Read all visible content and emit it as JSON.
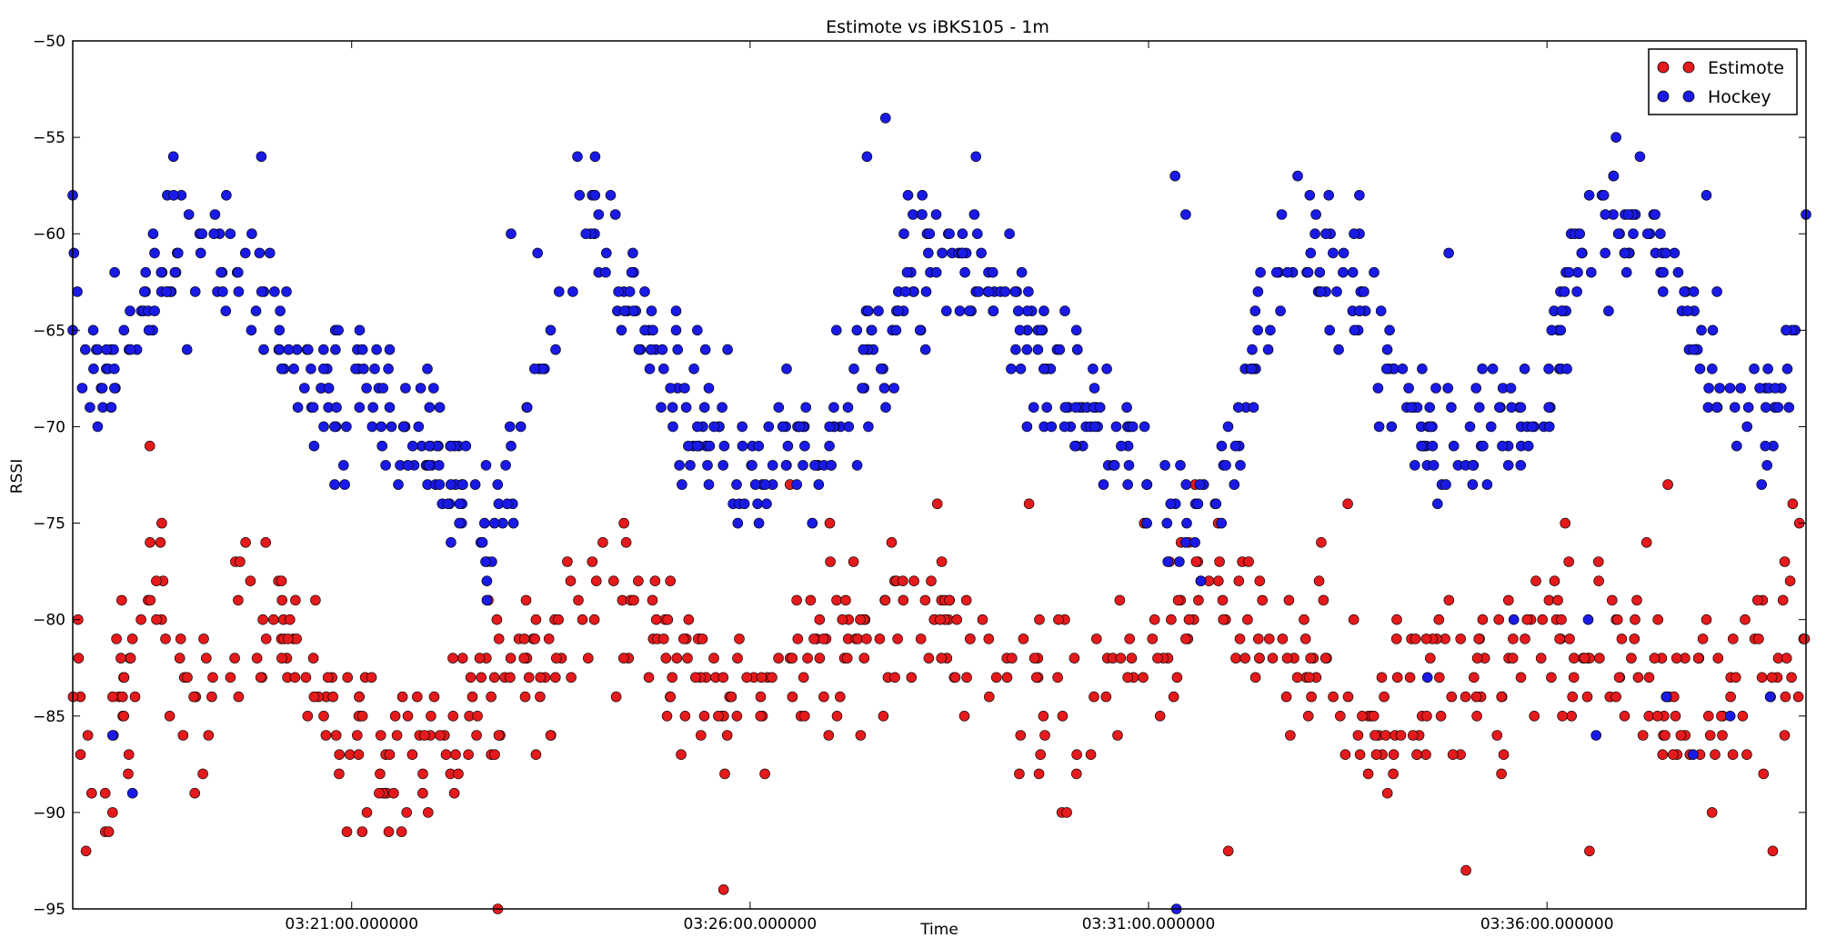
{
  "chart_data": {
    "type": "scatter",
    "title": "Estimote vs iBKS105 - 1m",
    "xlabel": "Time",
    "ylabel": "RSSI",
    "xlim_seconds_after_03_17_30": [
      0,
      1305
    ],
    "ylim": [
      -95,
      -50
    ],
    "yticks": [
      -50,
      -55,
      -60,
      -65,
      -70,
      -75,
      -80,
      -85,
      -90,
      -95
    ],
    "xticks": [
      {
        "value": 210,
        "label": "03:21:00.000000"
      },
      {
        "value": 510,
        "label": "03:26:00.000000"
      },
      {
        "value": 810,
        "label": "03:31:00.000000"
      },
      {
        "value": 1110,
        "label": "03:36:00.000000"
      }
    ],
    "grid": false,
    "legend": {
      "position": "top-right"
    },
    "series": [
      {
        "name": "Estimote",
        "color": "#e41a1c",
        "trend": [
          [
            0,
            -82
          ],
          [
            25,
            -88
          ],
          [
            60,
            -77
          ],
          [
            90,
            -84
          ],
          [
            130,
            -79
          ],
          [
            160,
            -81
          ],
          [
            200,
            -84
          ],
          [
            230,
            -88
          ],
          [
            270,
            -86
          ],
          [
            300,
            -85
          ],
          [
            330,
            -83
          ],
          [
            360,
            -82
          ],
          [
            390,
            -79
          ],
          [
            420,
            -79
          ],
          [
            450,
            -82
          ],
          [
            480,
            -84
          ],
          [
            510,
            -85
          ],
          [
            540,
            -84
          ],
          [
            570,
            -82
          ],
          [
            600,
            -81
          ],
          [
            630,
            -80
          ],
          [
            660,
            -80
          ],
          [
            690,
            -82
          ],
          [
            720,
            -84
          ],
          [
            750,
            -85
          ],
          [
            780,
            -84
          ],
          [
            810,
            -80
          ],
          [
            840,
            -79
          ],
          [
            870,
            -80
          ],
          [
            900,
            -81
          ],
          [
            930,
            -83
          ],
          [
            960,
            -84
          ],
          [
            990,
            -85
          ],
          [
            1020,
            -84
          ],
          [
            1050,
            -83
          ],
          [
            1080,
            -82
          ],
          [
            1110,
            -81
          ],
          [
            1140,
            -80
          ],
          [
            1170,
            -82
          ],
          [
            1200,
            -84
          ],
          [
            1230,
            -85
          ],
          [
            1260,
            -83
          ],
          [
            1305,
            -82
          ]
        ],
        "spread": 4.2,
        "count": 620,
        "highlights": [
          [
            4,
            -80
          ],
          [
            10,
            -92
          ],
          [
            30,
            -90
          ],
          [
            58,
            -71
          ],
          [
            320,
            -95
          ],
          [
            415,
            -75
          ],
          [
            448,
            -80
          ],
          [
            450,
            -84
          ],
          [
            490,
            -94
          ],
          [
            540,
            -73
          ],
          [
            570,
            -75
          ],
          [
            720,
            -74
          ],
          [
            845,
            -73
          ],
          [
            870,
            -92
          ],
          [
            940,
            -76
          ],
          [
            960,
            -74
          ],
          [
            1000,
            -86
          ],
          [
            1049,
            -93
          ],
          [
            1095,
            -80
          ],
          [
            1142,
            -92
          ],
          [
            1162,
            -84
          ],
          [
            1185,
            -76
          ],
          [
            1201,
            -73
          ],
          [
            1230,
            -80
          ],
          [
            1273,
            -88
          ],
          [
            1280,
            -92
          ],
          [
            1295,
            -74
          ],
          [
            1300,
            -75
          ],
          [
            1304,
            -81
          ]
        ]
      },
      {
        "name": "Hockey",
        "color": "#1a1ae6",
        "trend": [
          [
            0,
            -63
          ],
          [
            20,
            -68
          ],
          [
            45,
            -66
          ],
          [
            70,
            -62
          ],
          [
            100,
            -60
          ],
          [
            130,
            -62
          ],
          [
            160,
            -66
          ],
          [
            190,
            -69
          ],
          [
            220,
            -69
          ],
          [
            250,
            -70
          ],
          [
            280,
            -72
          ],
          [
            310,
            -75
          ],
          [
            340,
            -70
          ],
          [
            370,
            -63
          ],
          [
            390,
            -59
          ],
          [
            420,
            -63
          ],
          [
            450,
            -68
          ],
          [
            480,
            -70
          ],
          [
            510,
            -72
          ],
          [
            540,
            -71
          ],
          [
            570,
            -71
          ],
          [
            600,
            -66
          ],
          [
            625,
            -63
          ],
          [
            650,
            -61
          ],
          [
            680,
            -62
          ],
          [
            710,
            -64
          ],
          [
            740,
            -67
          ],
          [
            770,
            -69
          ],
          [
            800,
            -72
          ],
          [
            830,
            -75
          ],
          [
            860,
            -74
          ],
          [
            880,
            -69
          ],
          [
            900,
            -63
          ],
          [
            925,
            -60
          ],
          [
            950,
            -62
          ],
          [
            975,
            -64
          ],
          [
            1000,
            -68
          ],
          [
            1030,
            -72
          ],
          [
            1060,
            -70
          ],
          [
            1090,
            -70
          ],
          [
            1110,
            -68
          ],
          [
            1130,
            -62
          ],
          [
            1160,
            -59
          ],
          [
            1190,
            -61
          ],
          [
            1220,
            -65
          ],
          [
            1250,
            -69
          ],
          [
            1280,
            -70
          ],
          [
            1305,
            -64
          ]
        ],
        "spread": 3.4,
        "count": 760,
        "highlights": [
          [
            0,
            -58
          ],
          [
            0,
            -65
          ],
          [
            30,
            -86
          ],
          [
            45,
            -89
          ],
          [
            142,
            -56
          ],
          [
            330,
            -60
          ],
          [
            350,
            -61
          ],
          [
            380,
            -56
          ],
          [
            575,
            -65
          ],
          [
            598,
            -56
          ],
          [
            612,
            -54
          ],
          [
            680,
            -56
          ],
          [
            830,
            -57
          ],
          [
            838,
            -59
          ],
          [
            1036,
            -61
          ],
          [
            1054,
            -73
          ],
          [
            1162,
            -55
          ],
          [
            1180,
            -56
          ],
          [
            1230,
            -58
          ],
          [
            1238,
            -63
          ],
          [
            1290,
            -65
          ],
          [
            1305,
            -59
          ],
          [
            831,
            -95
          ],
          [
            1220,
            -87
          ],
          [
            1141,
            -80
          ],
          [
            1147,
            -86
          ],
          [
            1020,
            -83
          ],
          [
            1085,
            -80
          ],
          [
            1200,
            -84
          ],
          [
            1248,
            -85
          ],
          [
            1278,
            -84
          ]
        ]
      }
    ]
  }
}
